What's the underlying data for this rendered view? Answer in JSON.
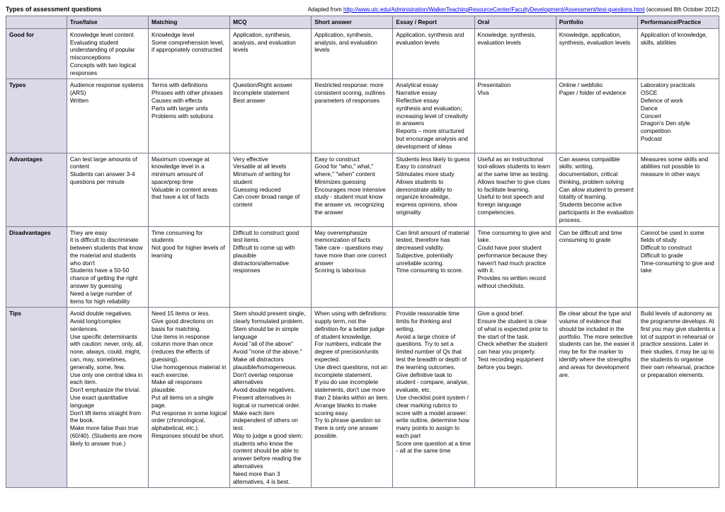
{
  "header": {
    "title": "Types of assessment questions",
    "attributionPrefix": "Adapted from ",
    "attributionUrl": "http://www.utc.edu/Administration/WalkerTeachingResourceCenter/FacultyDevelopment/Assessment/test-questions.html",
    "attributionSuffix": " (accessed 8th October 2012)"
  },
  "columns": [
    "True/false",
    "Matching",
    "MCQ",
    "Short answer",
    "Essay / Report",
    "Oral",
    "Portfolio",
    "Performance/Practice"
  ],
  "rows": [
    {
      "label": "Good for",
      "cells": [
        "Knowledge level content\nEvaluating student understanding of popular misconceptions\nConcepts with two logical responses",
        "Knowledge level\nSome comprehension level, if appropriately constructed",
        "Application, synthesis, analysis, and evaluation levels",
        "Application, synthesis, analysis, and evaluation levels",
        "Application, synthesis and evaluation levels",
        "Knowledge, synthesis, evaluation levels",
        "Knowledge, application, synthesis, evaluation levels",
        "Application of knowledge, skills, abilities"
      ]
    },
    {
      "label": "Types",
      "cells": [
        "Audience response systems (ARS)\nWritten",
        "Terms with definitions\nPhrases with other phrases\nCauses with effects\nParts with larger units\nProblems with solutions",
        "Question/Right answer\nIncomplete statement\nBest answer",
        "Restricted response: more consistent scoring, outlines parameters of responses",
        "Analytical essay\nNarrative essay\nReflective essay\nsynthesis and evaluation; increasing level of creativity in answers\nReports – more structured but encourage analysis and development of ideas",
        "Presentation\nViva",
        "Online / webfolio\nPaper / folder of evidence",
        "Laboratory practicals\nOSCE\nDefence of work\nDance\nConcert\nDragon's Den style competition\nPodcast"
      ]
    },
    {
      "label": "Advantages",
      "cells": [
        "Can test large amounts of content\nStudents can answer 3-4 questions per minute",
        "Maximum coverage at knowledge level in a minimum amount of space/prep time\nValuable in content areas that have a lot of facts",
        "Very effective\nVersatile at all levels\nMinimum of writing for student\nGuessing reduced\nCan cover broad range of content",
        "Easy to construct\nGood for \"who,\" what,\" where,\" \"when\" content\nMinimizes guessing\nEncourages more intensive study - student must know the answer vs. recognizing the answer",
        "Students less likely to guess\nEasy to construct\nStimulates more study\nAllows students to demonstrate ability to organize knowledge, express opinions, show originality",
        "Useful as an instructional tool-allows students to learn at the same time as testing.\nAllows teacher to give clues to facilitate learning.\nUseful to test speech and foreign language competencies.",
        "Can assess compatible skills: writing, documentation, critical thinking, problem solving\nCan allow student to present totality of learning.\nStudents become active participants in the evaluation process.",
        "Measures some skills and abilities not possible to measure in other ways"
      ]
    },
    {
      "label": "Disadvantages",
      "cells": [
        "They are easy\nIt is difficult to discriminate between students that know the material and students who don't\nStudents have a 50-50 chance of getting the right answer by guessing\nNeed a large number of items for high reliability",
        "Time consuming for students\nNot good for higher levels of learning",
        "Difficult to construct good test items.\nDifficult to come up with plausible distractors/alternative responses",
        "May overemphasize memorization of facts\nTake care - questions may have more than one correct answer\nScoring is laborious",
        "Can limit amount of material tested, therefore has decreased validity.\nSubjective, potentially unreliable scoring.\nTime consuming to score.",
        "Time consuming to give and take.\nCould have poor student performance because they haven't had much practice with it.\nProvides no written record without checklists.",
        "Can be difficult and time consuming to grade",
        "Cannot be used in some fields of study\nDifficult to construct\nDifficult to grade\nTime-consuming to give and take"
      ]
    },
    {
      "label": "Tips",
      "cells": [
        "Avoid double negatives.\nAvoid long/complex sentences.\nUse specific determinants with caution: never, only, all, none, always, could, might, can, may, sometimes, generally, some, few.\nUse only one central idea in each item.\nDon't emphasize the trivial.\nUse exact quantitative language\nDon't lift items straight from the book.\nMake more false than true (60/40). (Students are more likely to answer true.)",
        "Need 15 items or less.\nGive good directions on basis for matching.\nUse items in response column more than once (reduces the effects of guessing).\nUse homogenous material in each exercise.\nMake all responses plausible.\nPut all items on a single page.\nPut response in some logical order (chronological, alphabetical, etc.).\nResponses should be short.",
        "Stem should present single, clearly formulated problem.\nStem should be in simple language\nAvoid \"all of the above\"\nAvoid \"none of the above.\"\nMake all distractors plausible/homogeneous.\nDon't overlap response alternatives\nAvoid double negatives.\nPresent alternatives in logical or numerical order.\nMake each item independent of others on test.\nWay to judge a good stem: students who know the content should be able to answer before reading the alternatives\nNeed more than 3 alternatives, 4 is best.",
        "When using with definitions: supply term, not the definition-for a better judge of student knowledge.\nFor numbers, indicate the degree of precision/units expected.\nUse direct questions, not an incomplete statement.\nIf you do use incomplete statements, don't use more than 2 blanks within an item.\nArrange blanks to make scoring easy.\nTry to phrase question so there is only one answer possible.",
        "Provide reasonable time limits for thinking and writing.\nAvoid a large choice of questions. Try to set a limited number of Qs that test the breadth or depth of the learning outcomes.\nGive definitive task to student - compare, analyse, evaluate, etc.\nUse checklist point system / clear marking rubrics to score with a model answer: write outline, determine how many points to assign to each part\nScore one question at a time - all at the same time",
        "Give a good brief.\nEnsure the student is clear of what is expected prior to the start of the task.\nCheck whether the student can hear you properly.\nTest recording equipment before you begin.",
        "Be clear about the type and volume of evidence that should be included in the portfolio.  The more selective students can be, the easier it may be for the marker to identify where the strengths and areas for development are.",
        "Build levels of autonomy as the programme develops.  At first you may give students a lot of support in rehearsal or practice sessions.  Later in their studies, it may be up to the students to organise their own rehearsal, practice or preparation elements."
      ]
    }
  ]
}
